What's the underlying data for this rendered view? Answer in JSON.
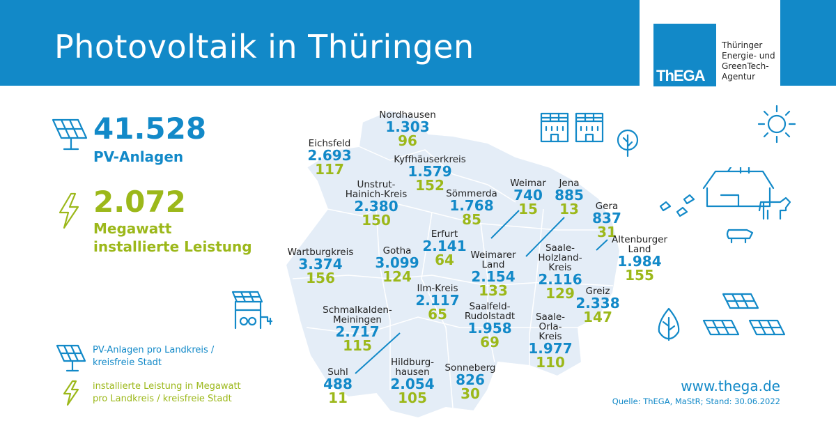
{
  "header": {
    "title": "Photovoltaik in Thüringen"
  },
  "logo": {
    "mark": "ThEGA",
    "subtitle": "Thüringer\nEnergie- und\nGreenTech-\nAgentur"
  },
  "summary": {
    "pv_count": "41.528",
    "pv_label": "PV-Anlagen",
    "mw_value": "2.072",
    "mw_label_1": "Megawatt",
    "mw_label_2": "installierte Leistung"
  },
  "regions": [
    {
      "name": "Nordhausen",
      "count": "1.303",
      "mw": "96"
    },
    {
      "name": "Eichsfeld",
      "count": "2.693",
      "mw": "117"
    },
    {
      "name": "Kyffhäuserkreis",
      "count": "1.579",
      "mw": "152"
    },
    {
      "name": "Unstrut-\nHainich-Kreis",
      "count": "2.380",
      "mw": "150"
    },
    {
      "name": "Sömmerda",
      "count": "1.768",
      "mw": "85"
    },
    {
      "name": "Weimar",
      "count": "740",
      "mw": "15"
    },
    {
      "name": "Jena",
      "count": "885",
      "mw": "13"
    },
    {
      "name": "Gera",
      "count": "837",
      "mw": "31"
    },
    {
      "name": "Altenburger\nLand",
      "count": "1.984",
      "mw": "155"
    },
    {
      "name": "Erfurt",
      "count": "2.141",
      "mw": "64"
    },
    {
      "name": "Wartburgkreis",
      "count": "3.374",
      "mw": "156"
    },
    {
      "name": "Gotha",
      "count": "3.099",
      "mw": "124"
    },
    {
      "name": "Weimarer\nLand",
      "count": "2.154",
      "mw": "133"
    },
    {
      "name": "Saale-\nHolzland-\nKreis",
      "count": "2.116",
      "mw": "129"
    },
    {
      "name": "Ilm-Kreis",
      "count": "2.117",
      "mw": "65"
    },
    {
      "name": "Greiz",
      "count": "2.338",
      "mw": "147"
    },
    {
      "name": "Schmalkalden-\nMeiningen",
      "count": "2.717",
      "mw": "115"
    },
    {
      "name": "Saalfeld-\nRudolstadt",
      "count": "1.958",
      "mw": "69"
    },
    {
      "name": "Saale-\nOrla-\nKreis",
      "count": "1.977",
      "mw": "110"
    },
    {
      "name": "Suhl",
      "count": "488",
      "mw": "11"
    },
    {
      "name": "Hildburg-\nhausen",
      "count": "2.054",
      "mw": "105"
    },
    {
      "name": "Sonneberg",
      "count": "826",
      "mw": "30"
    }
  ],
  "legend": {
    "pv": "PV-Anlagen pro Landkreis /\nkreisfreie Stadt",
    "mw": "installierte Leistung in Megawatt\npro Landkreis / kreisfreie Stadt"
  },
  "footer": {
    "url": "www.thega.de",
    "source": "Quelle: ThEGA, MaStR; Stand: 30.06.2022"
  },
  "colors": {
    "blue": "#1289c8",
    "green": "#9cb81a",
    "map": "#e4edf7"
  },
  "icons": [
    "solar-panel-icon",
    "lightning-bolt-icon",
    "building-icon",
    "tree-icon",
    "sun-icon",
    "barn-icon",
    "cow-icon",
    "pig-icon",
    "chicken-icon",
    "solar-carport-icon"
  ]
}
